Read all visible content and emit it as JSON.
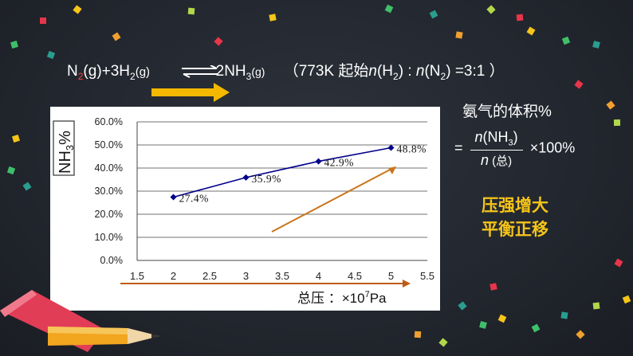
{
  "equation": {
    "n2": "N",
    "n2_sub": "2",
    "n2_state": "(g)+3H",
    "h2_sub": "2",
    "h2_state": "(g)",
    "product": "2NH",
    "product_sub": "3",
    "product_state": "(g)",
    "condition_open": "（773K 起始",
    "cond_n1": "n",
    "cond_h2": "(H",
    "cond_h2_sub": "2",
    "cond_h2_close": ") : ",
    "cond_n2": "n",
    "cond_n2p": "(N",
    "cond_n2_sub": "2",
    "cond_n2_close": ") =3:1 ）"
  },
  "side_title": "氨气的体积%",
  "formula": {
    "eq": "=",
    "numerator_n": "n",
    "numerator_rest": "(NH",
    "numerator_sub": "3",
    "numerator_close": ")",
    "denominator_n": "n",
    "denominator_rest": " (总)",
    "times": "×100%"
  },
  "conclusion": {
    "line1": "压强增大",
    "line2": "平衡正移"
  },
  "colors": {
    "series": "#00008b",
    "trend_arrow": "#c9751a",
    "axis_arrow": "#c05a14",
    "eq_arrow": "#f5b800",
    "conclusion": "#f5c518"
  },
  "chart_data": {
    "type": "line",
    "ylabel_main": "NH",
    "ylabel_sub": "3",
    "ylabel_pct": "%",
    "xlabel_main": "总压 ：×10",
    "xlabel_sup": "7",
    "xlabel_unit": "Pa",
    "xlim": [
      1.5,
      5.5
    ],
    "ylim": [
      0,
      60
    ],
    "x_ticks": [
      "1.5",
      "2",
      "2.5",
      "3",
      "3.5",
      "4",
      "4.5",
      "5",
      "5.5"
    ],
    "y_ticks": [
      "0.0%",
      "10.0%",
      "20.0%",
      "30.0%",
      "40.0%",
      "50.0%",
      "60.0%"
    ],
    "grid": "horizontal",
    "x": [
      2,
      3,
      4,
      5
    ],
    "y": [
      27.4,
      35.9,
      42.9,
      48.8
    ],
    "data_labels": [
      "27.4%",
      "35.9%",
      "42.9%",
      "48.8%"
    ]
  }
}
